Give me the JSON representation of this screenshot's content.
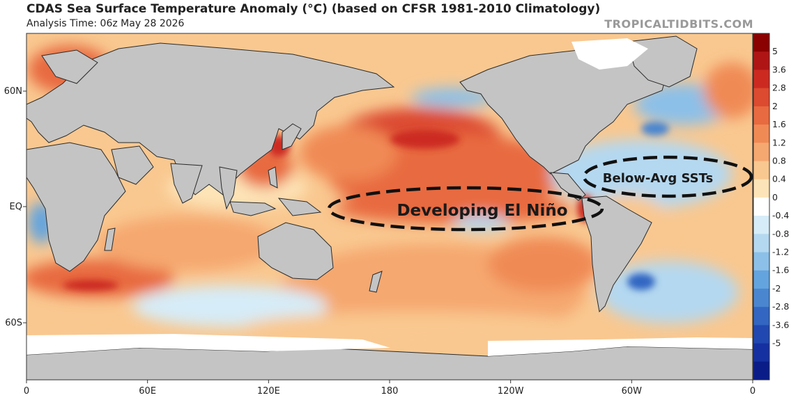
{
  "header": {
    "title": "CDAS Sea Surface Temperature Anomaly (°C) (based on CFSR 1981-2010 Climatology)",
    "analysis_time": "Analysis Time: 06z May 28 2026",
    "credit": "TROPICALTIDBITS.COM"
  },
  "map": {
    "x_ticks": [
      "0",
      "60E",
      "120E",
      "180",
      "120W",
      "60W",
      "0"
    ],
    "y_ticks": [
      "60N",
      "EQ",
      "60S"
    ],
    "annotations": {
      "el_nino": "Developing El Niño",
      "below_avg": "Below-Avg SSTs"
    }
  },
  "colorbar": {
    "labels": [
      "5",
      "3.6",
      "2.8",
      "2",
      "1.6",
      "1.2",
      "0.8",
      "0.4",
      "0",
      "-0.4",
      "-0.8",
      "-1.2",
      "-1.6",
      "-2",
      "-2.8",
      "-3.6",
      "-5"
    ],
    "colors": [
      "#8b0000",
      "#b01515",
      "#cc2a20",
      "#dc4a30",
      "#e86a40",
      "#f08a55",
      "#f5a870",
      "#f9c890",
      "#fde4b8",
      "#ffffff",
      "#d6ecf8",
      "#b4d8f0",
      "#8cc0e8",
      "#64a4de",
      "#4a86d0",
      "#3266c2",
      "#2048b0",
      "#1530a0",
      "#0a1c88"
    ]
  }
}
